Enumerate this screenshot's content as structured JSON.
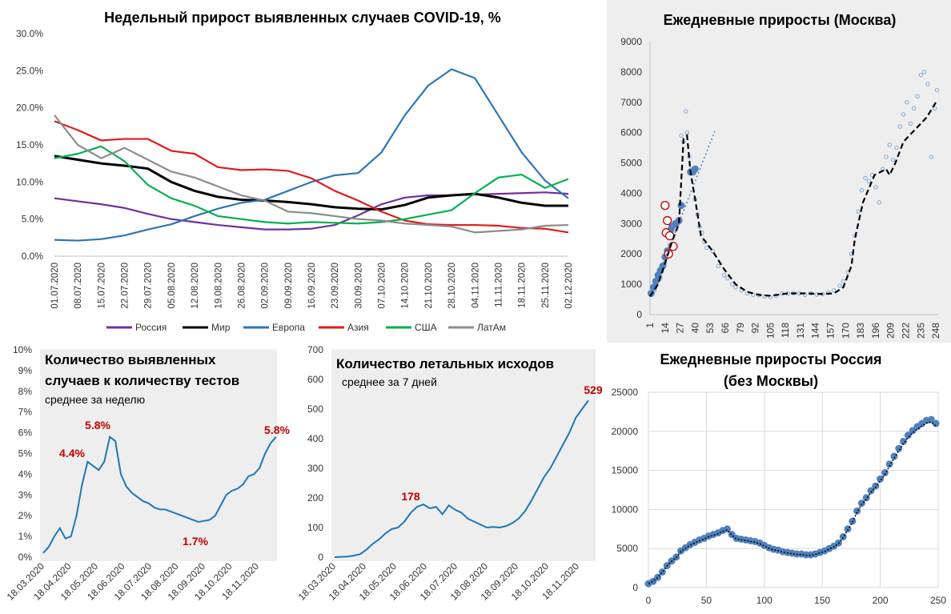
{
  "colors": {
    "russia": "#7030a0",
    "world": "#000000",
    "europe": "#2e75b6",
    "asia": "#e31a1c",
    "usa": "#00b050",
    "latam": "#8c8c8c",
    "panel_bg": "#eeeeee",
    "dots": "#4f81bd",
    "highlight": "#c00000",
    "teal": "#1f77b4"
  },
  "chart_data": [
    {
      "type": "line",
      "title": "Недельный прирост выявленных случаев COVID-19, %",
      "xlabels": [
        "01.07.2020",
        "08.07.2020",
        "15.07.2020",
        "22.07.2020",
        "29.07.2020",
        "05.08.2020",
        "12.08.2020",
        "19.08.2020",
        "26.08.2020",
        "02.09.2020",
        "09.09.2020",
        "16.09.2020",
        "23.09.2020",
        "30.09.2020",
        "07.10.2020",
        "14.10.2020",
        "21.10.2020",
        "28.10.2020",
        "04.11.2020",
        "11.11.2020",
        "18.11.2020",
        "25.11.2020",
        "02.12.2020"
      ],
      "ylabels": [
        "0.0%",
        "5.0%",
        "10.0%",
        "15.0%",
        "20.0%",
        "25.0%",
        "30.0%"
      ],
      "ylim": [
        0,
        30
      ],
      "series": [
        {
          "name": "Россия",
          "color_key": "russia",
          "values": [
            7.8,
            7.4,
            7.0,
            6.5,
            5.7,
            5.0,
            4.6,
            4.2,
            3.9,
            3.6,
            3.6,
            3.7,
            4.2,
            5.5,
            7.0,
            7.9,
            8.2,
            8.2,
            8.3,
            8.4,
            8.5,
            8.6,
            8.4
          ]
        },
        {
          "name": "Мир",
          "color_key": "world",
          "values": [
            13.5,
            13.0,
            12.5,
            12.2,
            11.8,
            10.0,
            8.8,
            8.0,
            7.6,
            7.5,
            7.3,
            7.0,
            6.6,
            6.4,
            6.3,
            6.9,
            7.9,
            8.2,
            8.4,
            7.9,
            7.2,
            6.8,
            6.8
          ]
        },
        {
          "name": "Европа",
          "color_key": "europe",
          "values": [
            2.2,
            2.1,
            2.3,
            2.8,
            3.6,
            4.3,
            5.4,
            6.4,
            7.2,
            7.6,
            8.8,
            10.0,
            10.9,
            11.2,
            14.0,
            19.0,
            23.0,
            25.2,
            24.0,
            19.0,
            14.0,
            10.2,
            7.8
          ]
        },
        {
          "name": "Азия",
          "color_key": "asia",
          "values": [
            18.2,
            17.0,
            15.6,
            15.8,
            15.8,
            14.2,
            13.8,
            12.0,
            11.6,
            11.7,
            11.5,
            10.5,
            8.8,
            7.5,
            6.0,
            4.8,
            4.3,
            4.2,
            4.2,
            4.1,
            3.8,
            3.7,
            3.2
          ]
        },
        {
          "name": "США",
          "color_key": "usa",
          "values": [
            13.2,
            13.8,
            14.8,
            12.8,
            9.6,
            7.8,
            6.8,
            5.4,
            5.0,
            4.6,
            4.4,
            4.6,
            4.5,
            4.4,
            4.6,
            5.0,
            5.6,
            6.2,
            8.5,
            10.6,
            11.0,
            9.2,
            10.4
          ]
        },
        {
          "name": "ЛатАм",
          "color_key": "latam",
          "values": [
            19.0,
            15.0,
            13.2,
            14.6,
            13.0,
            11.4,
            10.6,
            9.4,
            8.2,
            7.5,
            6.0,
            5.8,
            5.4,
            5.0,
            4.8,
            4.4,
            4.2,
            4.0,
            3.2,
            3.4,
            3.6,
            4.1,
            4.2
          ]
        }
      ]
    },
    {
      "type": "scatter",
      "title": "Ежедневные приросты (Москва)",
      "ylabels": [
        "0",
        "1000",
        "2000",
        "3000",
        "4000",
        "5000",
        "6000",
        "7000",
        "8000",
        "9000"
      ],
      "xlabels": [
        "1",
        "14",
        "27",
        "40",
        "53",
        "66",
        "79",
        "92",
        "105",
        "118",
        "131",
        "144",
        "157",
        "170",
        "183",
        "196",
        "209",
        "222",
        "235",
        "248"
      ],
      "ylim": [
        0,
        9000
      ],
      "xlim": [
        1,
        250
      ],
      "trend_x": [
        1,
        8,
        14,
        20,
        26,
        30,
        33,
        36,
        40,
        45,
        55,
        65,
        75,
        85,
        95,
        105,
        120,
        135,
        150,
        160,
        168,
        175,
        178,
        185,
        195,
        205,
        208,
        213,
        220,
        230,
        240,
        248
      ],
      "trend_y": [
        600,
        1000,
        1700,
        2400,
        3000,
        5800,
        5900,
        4700,
        3800,
        2600,
        2100,
        1500,
        1000,
        750,
        650,
        620,
        700,
        700,
        680,
        700,
        900,
        1600,
        2500,
        3700,
        4600,
        4800,
        4600,
        5000,
        5700,
        6100,
        6500,
        7000
      ],
      "scatter_x": [
        5,
        10,
        14,
        18,
        22,
        25,
        28,
        30,
        32,
        33,
        35,
        37,
        40,
        42,
        44,
        46,
        48,
        50,
        55,
        60,
        65,
        68,
        72,
        75,
        80,
        85,
        90,
        95,
        100,
        105,
        110,
        115,
        120,
        125,
        130,
        135,
        140,
        145,
        150,
        155,
        160,
        165,
        168,
        172,
        175,
        178,
        181,
        184,
        187,
        190,
        193,
        196,
        199,
        202,
        205,
        208,
        211,
        214,
        217,
        220,
        223,
        226,
        229,
        232,
        235,
        238,
        241,
        244,
        247,
        249
      ],
      "scatter_y": [
        800,
        1200,
        1700,
        2300,
        2900,
        3000,
        5900,
        5700,
        6700,
        6000,
        5200,
        4800,
        3800,
        3300,
        2900,
        2700,
        2400,
        2200,
        2100,
        1600,
        1300,
        1200,
        1000,
        900,
        800,
        700,
        650,
        640,
        600,
        580,
        620,
        700,
        690,
        710,
        700,
        650,
        700,
        660,
        680,
        720,
        800,
        950,
        1100,
        1400,
        2000,
        2600,
        3400,
        4100,
        4500,
        4400,
        4600,
        4200,
        3700,
        4800,
        5200,
        5600,
        5100,
        5500,
        6200,
        6600,
        7000,
        6300,
        6800,
        7200,
        7900,
        8000,
        7600,
        5200,
        6800,
        7400
      ],
      "big_x": [
        2,
        4,
        6,
        8,
        10,
        12,
        14,
        16,
        17,
        19,
        20,
        23,
        26,
        28,
        36,
        38,
        40
      ],
      "big_y": [
        700,
        900,
        1100,
        1300,
        1450,
        1600,
        1900,
        2100,
        2700,
        2800,
        2900,
        3000,
        3100,
        3600,
        4700,
        4700,
        4800
      ],
      "red_x": [
        14,
        15,
        16,
        17,
        18,
        21
      ],
      "red_y": [
        3600,
        2700,
        3100,
        2000,
        2600,
        2250
      ],
      "dotted_x": [
        1,
        57
      ],
      "dotted_y": [
        600,
        6050
      ]
    },
    {
      "type": "line",
      "title": "Количество выявленных случаев к количеству тестов",
      "subtitle": "среднее за неделю",
      "xlabels": [
        "18.03.2020",
        "18.04.2020",
        "18.05.2020",
        "18.06.2020",
        "18.07.2020",
        "18.08.2020",
        "18.09.2020",
        "18.10.2020",
        "18.11.2020"
      ],
      "ylabels": [
        "0%",
        "1%",
        "2%",
        "3%",
        "4%",
        "5%",
        "6%",
        "7%",
        "8%",
        "9%",
        "10%"
      ],
      "ylim": [
        0,
        10
      ],
      "annotations": [
        "4.4%",
        "5.8%",
        "1.7%",
        "5.8%"
      ],
      "values": [
        0.2,
        0.5,
        1.0,
        1.4,
        0.9,
        1.0,
        2.0,
        3.5,
        4.6,
        4.4,
        4.2,
        4.6,
        5.8,
        5.6,
        4.0,
        3.4,
        3.1,
        2.9,
        2.7,
        2.6,
        2.4,
        2.3,
        2.3,
        2.2,
        2.1,
        2.0,
        1.9,
        1.8,
        1.7,
        1.75,
        1.8,
        2.0,
        2.5,
        3.0,
        3.2,
        3.3,
        3.5,
        3.9,
        4.0,
        4.3,
        5.0,
        5.5,
        5.8
      ]
    },
    {
      "type": "line",
      "title": "Количество летальных исходов",
      "subtitle": "среднее за 7 дней",
      "xlabels": [
        "18.03.2020",
        "18.04.2020",
        "18.05.2020",
        "18.06.2020",
        "18.07.2020",
        "18.08.2020",
        "18.09.2020",
        "18.10.2020",
        "18.11.2020"
      ],
      "ylabels": [
        "0",
        "100",
        "200",
        "300",
        "400",
        "500",
        "600",
        "700"
      ],
      "ylim": [
        0,
        700
      ],
      "annotations": [
        "178",
        "529"
      ],
      "values": [
        0,
        1,
        2,
        5,
        10,
        25,
        45,
        60,
        80,
        95,
        100,
        120,
        150,
        170,
        178,
        165,
        170,
        145,
        175,
        160,
        150,
        130,
        120,
        110,
        100,
        102,
        100,
        105,
        115,
        130,
        155,
        190,
        230,
        270,
        300,
        340,
        380,
        420,
        470,
        500,
        529
      ]
    },
    {
      "type": "scatter",
      "title": "Ежедневные приросты Россия",
      "subtitle": "(без Москвы)",
      "ylabels": [
        "0",
        "5000",
        "10000",
        "15000",
        "20000",
        "25000"
      ],
      "xlabels": [
        "0",
        "50",
        "100",
        "150",
        "200",
        "250"
      ],
      "ylim": [
        0,
        25000
      ],
      "xlim": [
        0,
        250
      ],
      "points_x": [
        0,
        4,
        8,
        12,
        16,
        20,
        24,
        28,
        32,
        36,
        40,
        44,
        48,
        52,
        56,
        60,
        64,
        68,
        72,
        76,
        80,
        84,
        88,
        92,
        96,
        100,
        104,
        108,
        112,
        116,
        120,
        124,
        128,
        132,
        136,
        140,
        144,
        148,
        152,
        156,
        160,
        164,
        168,
        172,
        176,
        180,
        184,
        188,
        192,
        196,
        200,
        204,
        208,
        212,
        216,
        220,
        224,
        228,
        232,
        236,
        240,
        244,
        248
      ],
      "points_y": [
        500,
        800,
        1300,
        2000,
        2800,
        3400,
        3900,
        4700,
        5100,
        5500,
        5800,
        6100,
        6300,
        6600,
        6800,
        7000,
        7300,
        7500,
        6800,
        6300,
        6200,
        6100,
        6000,
        5900,
        5700,
        5400,
        5100,
        4900,
        4800,
        4600,
        4500,
        4400,
        4300,
        4300,
        4200,
        4200,
        4300,
        4500,
        4700,
        5000,
        5300,
        5700,
        6500,
        7500,
        8500,
        9800,
        10800,
        11500,
        12400,
        13000,
        13900,
        14700,
        15800,
        16800,
        17800,
        18700,
        19500,
        20100,
        20600,
        21000,
        21400,
        21500,
        21000
      ]
    }
  ],
  "legend": [
    {
      "name": "Россия",
      "color_key": "russia"
    },
    {
      "name": "Мир",
      "color_key": "world"
    },
    {
      "name": "Европа",
      "color_key": "europe"
    },
    {
      "name": "Азия",
      "color_key": "asia"
    },
    {
      "name": "США",
      "color_key": "usa"
    },
    {
      "name": "ЛатАм",
      "color_key": "latam"
    }
  ]
}
